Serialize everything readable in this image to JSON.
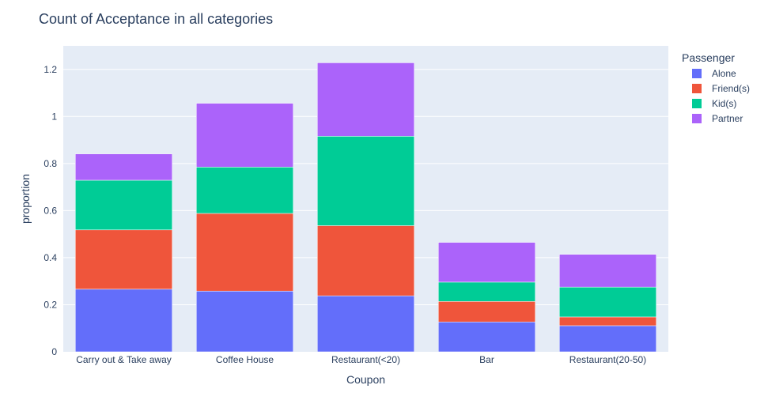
{
  "chart_data": {
    "type": "bar",
    "barmode": "stack",
    "title": "Count of Acceptance in all categories",
    "xlabel": "Coupon",
    "ylabel": "proportion",
    "ylim": [
      0,
      1.3
    ],
    "y_ticks": [
      0,
      0.2,
      0.4,
      0.6,
      0.8,
      1,
      1.2
    ],
    "y_tick_labels": [
      "0",
      "0.2",
      "0.4",
      "0.6",
      "0.8",
      "1",
      "1.2"
    ],
    "grid": true,
    "legend_title": "Passenger",
    "legend_position": "top-right",
    "categories": [
      "Carry out & Take away",
      "Coffee House",
      "Restaurant(<20)",
      "Bar",
      "Restaurant(20-50)"
    ],
    "series": [
      {
        "name": "Alone",
        "color": "#636efa",
        "values": [
          0.266,
          0.258,
          0.238,
          0.127,
          0.111
        ]
      },
      {
        "name": "Friend(s)",
        "color": "#ef553b",
        "values": [
          0.252,
          0.33,
          0.298,
          0.087,
          0.037
        ]
      },
      {
        "name": "Kid(s)",
        "color": "#00cc96",
        "values": [
          0.211,
          0.197,
          0.38,
          0.082,
          0.127
        ]
      },
      {
        "name": "Partner",
        "color": "#ab63fa",
        "values": [
          0.112,
          0.271,
          0.312,
          0.169,
          0.139
        ]
      }
    ],
    "plot_background": "#e5ecf6"
  }
}
